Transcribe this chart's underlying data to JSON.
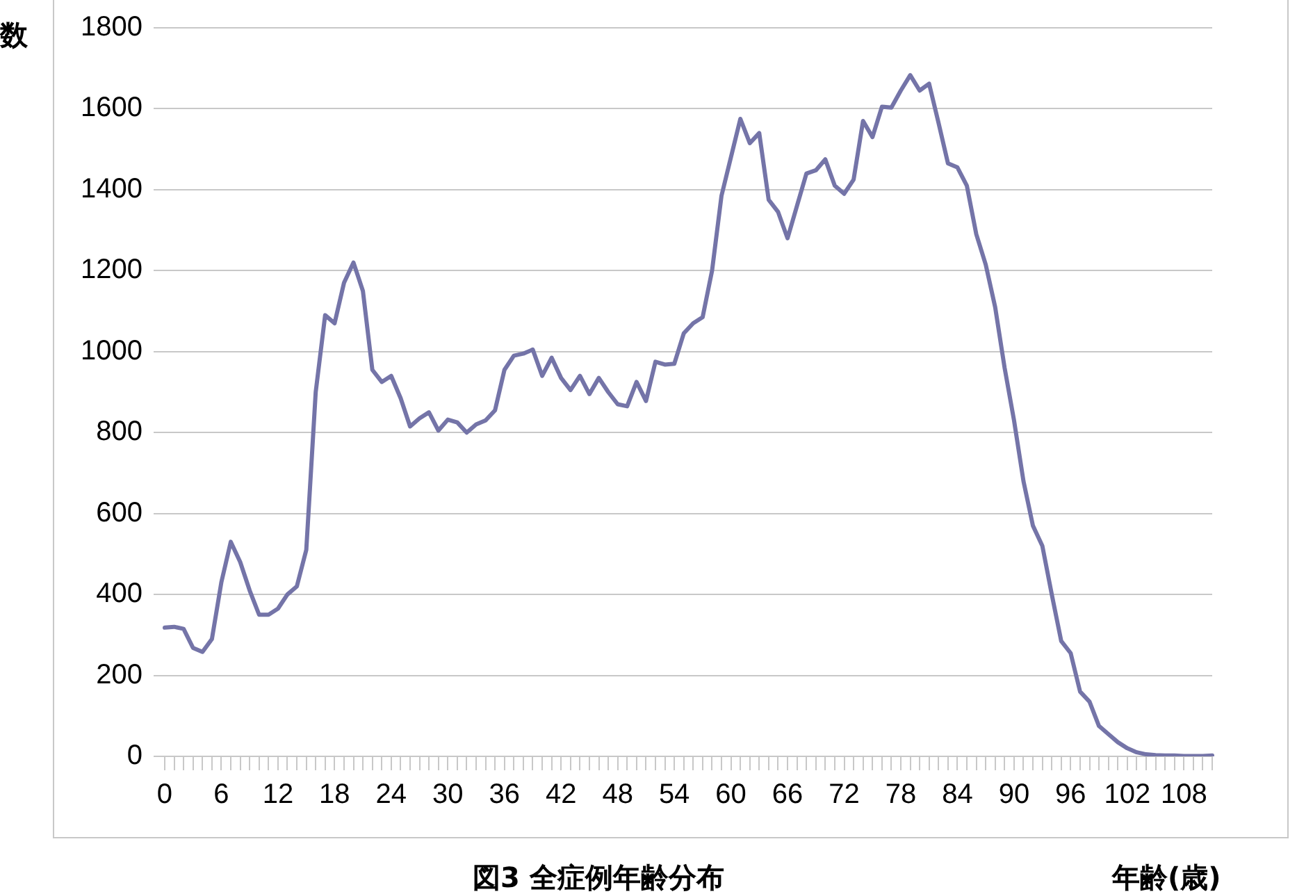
{
  "chart_data": {
    "type": "line",
    "title": "図3 全症例年齢分布",
    "xlabel": "年齢(歳)",
    "ylabel": "数",
    "categories": [
      "0",
      null,
      null,
      null,
      null,
      null,
      "6",
      null,
      null,
      null,
      null,
      null,
      "12",
      null,
      null,
      null,
      null,
      null,
      "18",
      null,
      null,
      null,
      null,
      null,
      "24",
      null,
      null,
      null,
      null,
      null,
      "30",
      null,
      null,
      null,
      null,
      null,
      "36",
      null,
      null,
      null,
      null,
      null,
      "42",
      null,
      null,
      null,
      null,
      null,
      "48",
      null,
      null,
      null,
      null,
      null,
      "54",
      null,
      null,
      null,
      null,
      null,
      "60",
      null,
      null,
      null,
      null,
      null,
      "66",
      null,
      null,
      null,
      null,
      null,
      "72",
      null,
      null,
      null,
      null,
      null,
      "78",
      null,
      null,
      null,
      null,
      null,
      "84",
      null,
      null,
      null,
      null,
      null,
      "90",
      null,
      null,
      null,
      null,
      null,
      "96",
      null,
      null,
      null,
      null,
      null,
      "102",
      null,
      null,
      null,
      null,
      null,
      "108",
      null,
      null,
      null
    ],
    "series": [
      {
        "color": "#7474a8",
        "values": [
          318,
          320,
          315,
          268,
          258,
          290,
          430,
          530,
          480,
          410,
          350,
          350,
          365,
          400,
          420,
          510,
          900,
          1090,
          1070,
          1170,
          1220,
          1150,
          955,
          925,
          940,
          885,
          815,
          835,
          850,
          805,
          832,
          825,
          800,
          820,
          830,
          855,
          955,
          990,
          995,
          1005,
          940,
          985,
          935,
          905,
          940,
          895,
          935,
          900,
          870,
          865,
          925,
          878,
          975,
          968,
          970,
          1045,
          1070,
          1085,
          1200,
          1385,
          1480,
          1575,
          1515,
          1540,
          1375,
          1345,
          1280,
          1360,
          1440,
          1448,
          1475,
          1410,
          1390,
          1425,
          1570,
          1530,
          1605,
          1603,
          1645,
          1683,
          1645,
          1662,
          1565,
          1465,
          1455,
          1410,
          1290,
          1215,
          1110,
          960,
          830,
          680,
          570,
          520,
          400,
          285,
          255,
          160,
          135,
          75,
          55,
          35,
          20,
          10,
          5,
          3,
          2,
          2,
          1,
          1,
          1,
          2
        ]
      }
    ],
    "ylim": [
      0,
      1800
    ],
    "yticks": [
      0,
      200,
      400,
      600,
      800,
      1000,
      1200,
      1400,
      1600,
      1800
    ],
    "grid": "y",
    "legend": false,
    "marker": "none",
    "line_style": "solid"
  }
}
